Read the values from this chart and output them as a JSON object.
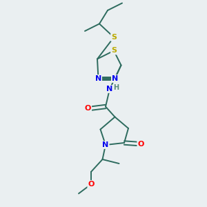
{
  "background_color": "#eaeff1",
  "atom_colors": {
    "C": "#2d6b5e",
    "N": "#0000ee",
    "S": "#bbaa00",
    "O": "#ff0000",
    "H": "#5a8a7a"
  },
  "bond_color": "#2d6b5e",
  "figsize": [
    3.0,
    3.0
  ],
  "dpi": 100
}
